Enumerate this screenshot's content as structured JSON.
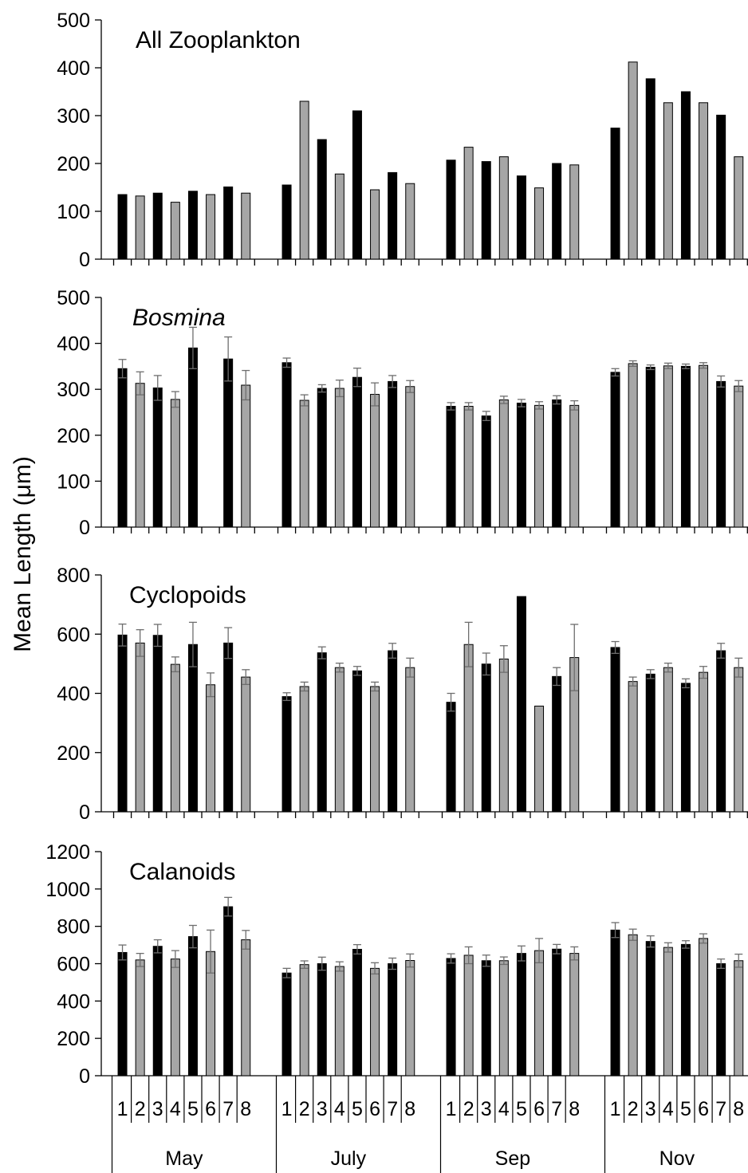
{
  "ylabel": "Mean Length (μm)",
  "x_axis": {
    "station_labels": [
      "1",
      "2",
      "3",
      "4",
      "5",
      "6",
      "7",
      "8"
    ],
    "months": [
      "May",
      "July",
      "Sep",
      "Nov"
    ]
  },
  "colors": {
    "odd_station": "#000000",
    "even_station": "#a6a6a6",
    "error_bar": "#6e6e6e"
  },
  "chart_data": [
    {
      "type": "bar",
      "title": "All Zooplankton",
      "title_italic": false,
      "ylim": [
        0,
        500
      ],
      "yticks": [
        0,
        100,
        200,
        300,
        400,
        500
      ],
      "groups": [
        "May",
        "July",
        "Sep",
        "Nov"
      ],
      "stations": [
        "1",
        "2",
        "3",
        "4",
        "5",
        "6",
        "7",
        "8"
      ],
      "values": [
        [
          135,
          132,
          138,
          119,
          142,
          135,
          151,
          138
        ],
        [
          155,
          330,
          250,
          178,
          310,
          145,
          181,
          158
        ],
        [
          207,
          234,
          204,
          214,
          174,
          149,
          200,
          197
        ],
        [
          274,
          412,
          377,
          327,
          350,
          327,
          301,
          214
        ]
      ],
      "errors": null
    },
    {
      "type": "bar",
      "title": "Bosmina",
      "title_italic": true,
      "ylim": [
        0,
        500
      ],
      "yticks": [
        0,
        100,
        200,
        300,
        400,
        500
      ],
      "groups": [
        "May",
        "July",
        "Sep",
        "Nov"
      ],
      "stations": [
        "1",
        "2",
        "3",
        "4",
        "5",
        "6",
        "7",
        "8"
      ],
      "values": [
        [
          345,
          313,
          303,
          278,
          390,
          null,
          366,
          309
        ],
        [
          358,
          276,
          302,
          302,
          326,
          289,
          317,
          306
        ],
        [
          263,
          263,
          242,
          277,
          270,
          265,
          277,
          265
        ],
        [
          337,
          356,
          348,
          351,
          350,
          352,
          317,
          307
        ]
      ],
      "errors": [
        [
          20,
          25,
          27,
          17,
          45,
          null,
          48,
          32
        ],
        [
          10,
          12,
          8,
          18,
          20,
          25,
          13,
          13
        ],
        [
          8,
          8,
          10,
          8,
          8,
          8,
          9,
          10
        ],
        [
          8,
          6,
          5,
          6,
          5,
          6,
          12,
          12
        ]
      ]
    },
    {
      "type": "bar",
      "title": "Cyclopoids",
      "title_italic": false,
      "ylim": [
        0,
        800
      ],
      "yticks": [
        0,
        200,
        400,
        600,
        800
      ],
      "groups": [
        "May",
        "July",
        "Sep",
        "Nov"
      ],
      "stations": [
        "1",
        "2",
        "3",
        "4",
        "5",
        "6",
        "7",
        "8"
      ],
      "values": [
        [
          597,
          570,
          596,
          498,
          565,
          429,
          570,
          455
        ],
        [
          389,
          423,
          537,
          487,
          476,
          423,
          544,
          487
        ],
        [
          370,
          565,
          499,
          516,
          727,
          357,
          457,
          521
        ],
        [
          555,
          440,
          465,
          487,
          434,
          471,
          544,
          487
        ]
      ],
      "errors": [
        [
          37,
          45,
          37,
          25,
          75,
          40,
          52,
          25
        ],
        [
          13,
          15,
          20,
          15,
          15,
          15,
          25,
          32
        ],
        [
          30,
          75,
          37,
          45,
          0,
          0,
          30,
          112
        ],
        [
          20,
          15,
          15,
          15,
          15,
          20,
          25,
          32
        ]
      ]
    },
    {
      "type": "bar",
      "title": "Calanoids",
      "title_italic": false,
      "ylim": [
        0,
        1200
      ],
      "yticks": [
        0,
        200,
        400,
        600,
        800,
        1000,
        1200
      ],
      "groups": [
        "May",
        "July",
        "Sep",
        "Nov"
      ],
      "stations": [
        "1",
        "2",
        "3",
        "4",
        "5",
        "6",
        "7",
        "8"
      ],
      "values": [
        [
          660,
          620,
          693,
          625,
          745,
          665,
          905,
          728
        ],
        [
          550,
          595,
          600,
          585,
          677,
          575,
          600,
          617
        ],
        [
          628,
          645,
          616,
          616,
          655,
          670,
          678,
          655
        ],
        [
          780,
          755,
          719,
          687,
          703,
          735,
          600,
          616
        ]
      ],
      "errors": [
        [
          40,
          35,
          35,
          45,
          60,
          115,
          50,
          50
        ],
        [
          25,
          20,
          35,
          25,
          25,
          30,
          30,
          35
        ],
        [
          25,
          45,
          30,
          20,
          40,
          65,
          25,
          35
        ],
        [
          40,
          30,
          30,
          25,
          20,
          25,
          25,
          35
        ]
      ]
    }
  ]
}
